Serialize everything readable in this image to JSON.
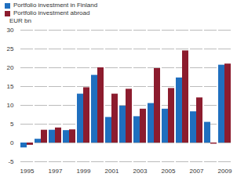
{
  "chart_data": {
    "type": "bar",
    "ylabel": "EUR bn",
    "categories": [
      "1995",
      null,
      "1997",
      null,
      "1999",
      null,
      "2001",
      null,
      "2003",
      null,
      "2005",
      null,
      "2007",
      null,
      "2009"
    ],
    "series": [
      {
        "name": "Portfolio investment in Finland",
        "color": "#1f6fbf",
        "values": [
          -1.3,
          1.0,
          3.4,
          3.3,
          13.0,
          18.0,
          6.8,
          9.8,
          7.0,
          10.5,
          9.0,
          17.3,
          8.3,
          5.5,
          20.7
        ]
      },
      {
        "name": "Portfolio investment abroad",
        "color": "#8c1c2e",
        "values": [
          -0.6,
          3.4,
          4.0,
          3.5,
          14.7,
          20.0,
          13.0,
          14.3,
          9.0,
          19.8,
          14.5,
          24.5,
          12.0,
          -0.3,
          21.0
        ]
      }
    ],
    "ylim": [
      -5,
      30
    ],
    "yticks": [
      -5,
      0,
      5,
      10,
      15,
      20,
      25,
      30
    ],
    "grid": true,
    "legend": "top-left"
  }
}
